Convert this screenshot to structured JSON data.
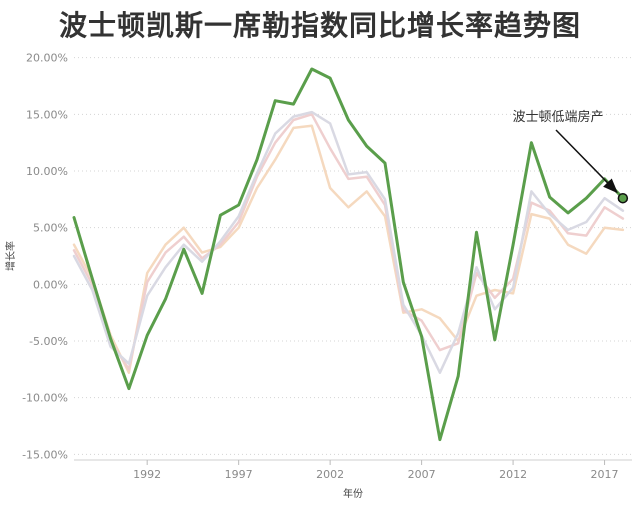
{
  "chart_data": {
    "type": "line",
    "title": "波士顿凯斯一席勒指数同比增长率趋势图",
    "xlabel": "年份",
    "ylabel": "增长率",
    "xlim": [
      1988,
      2018.5
    ],
    "ylim": [
      -15.5,
      20.5
    ],
    "xticks": [
      1992,
      1997,
      2002,
      2007,
      2012,
      2017
    ],
    "yticks": [
      20,
      15,
      10,
      5,
      0,
      -5,
      -10,
      -15
    ],
    "ytick_labels": [
      "20.00%",
      "15.00%",
      "10.00%",
      "5.00%",
      "0.00%",
      "-5.00%",
      "-10.00%",
      "-15.00%"
    ],
    "grid": "horizontal dotted",
    "annotation": {
      "text": "波士顿低端房产",
      "target_series": "低端",
      "target_x": 2018,
      "target_y": 7.6
    },
    "series": [
      {
        "color": "#f5d9bf",
        "highlight": false,
        "x": [
          1988,
          1989,
          1990,
          1991,
          1992,
          1993,
          1994,
          1995,
          1996,
          1997,
          1998,
          1999,
          2000,
          2001,
          2002,
          2003,
          2004,
          2005,
          2006,
          2007,
          2008,
          2009,
          2010,
          2011,
          2012,
          2013,
          2014,
          2015,
          2016,
          2017,
          2018
        ],
        "y": [
          3.5,
          0.5,
          -4.5,
          -7.8,
          1.0,
          3.5,
          5.0,
          2.8,
          3.3,
          5.0,
          8.5,
          11.0,
          13.8,
          14.0,
          8.5,
          6.8,
          8.2,
          6.0,
          -2.5,
          -2.2,
          -3.0,
          -5.0,
          -1.0,
          -0.5,
          -0.8,
          6.2,
          5.8,
          3.5,
          2.7,
          5.0,
          4.8
        ]
      },
      {
        "color": "#efcfcf",
        "highlight": false,
        "x": [
          1988,
          1989,
          1990,
          1991,
          1992,
          1993,
          1994,
          1995,
          1996,
          1997,
          1998,
          1999,
          2000,
          2001,
          2002,
          2003,
          2004,
          2005,
          2006,
          2007,
          2008,
          2009,
          2010,
          2011,
          2012,
          2013,
          2014,
          2015,
          2016,
          2017,
          2018
        ],
        "y": [
          3.0,
          0.0,
          -5.0,
          -7.5,
          0.2,
          2.8,
          4.2,
          2.3,
          3.5,
          5.5,
          9.5,
          12.5,
          14.5,
          15.0,
          12.0,
          9.3,
          9.5,
          7.0,
          -2.3,
          -3.2,
          -5.8,
          -5.2,
          1.0,
          -1.2,
          0.5,
          7.2,
          6.5,
          4.5,
          4.3,
          6.8,
          5.8
        ]
      },
      {
        "color": "#d9d9e3",
        "highlight": false,
        "x": [
          1988,
          1989,
          1990,
          1991,
          1992,
          1993,
          1994,
          1995,
          1996,
          1997,
          1998,
          1999,
          2000,
          2001,
          2002,
          2003,
          2004,
          2005,
          2006,
          2007,
          2008,
          2009,
          2010,
          2011,
          2012,
          2013,
          2014,
          2015,
          2016,
          2017,
          2018
        ],
        "y": [
          2.5,
          -0.5,
          -5.5,
          -7.0,
          -1.0,
          1.5,
          3.5,
          2.0,
          3.8,
          6.0,
          9.8,
          13.3,
          14.8,
          15.2,
          14.2,
          9.7,
          9.9,
          7.5,
          -1.8,
          -4.5,
          -7.8,
          -4.3,
          1.5,
          -2.2,
          -0.3,
          8.2,
          6.2,
          4.8,
          5.5,
          7.6,
          6.5
        ]
      },
      {
        "name": "低端",
        "color": "#5a9e4b",
        "highlight": true,
        "x": [
          1988,
          1989,
          1990,
          1991,
          1992,
          1993,
          1994,
          1995,
          1996,
          1997,
          1998,
          1999,
          2000,
          2001,
          2002,
          2003,
          2004,
          2005,
          2006,
          2007,
          2008,
          2009,
          2010,
          2011,
          2012,
          2013,
          2014,
          2015,
          2016,
          2017,
          2018
        ],
        "y": [
          5.9,
          0.5,
          -4.8,
          -9.2,
          -4.5,
          -1.3,
          3.1,
          -0.8,
          6.1,
          7.0,
          11.0,
          16.2,
          15.9,
          19.0,
          18.2,
          14.5,
          12.2,
          10.7,
          0.2,
          -4.6,
          -13.7,
          -8.1,
          4.6,
          -4.9,
          3.5,
          12.5,
          7.7,
          6.3,
          7.6,
          9.3,
          7.6
        ]
      }
    ]
  }
}
